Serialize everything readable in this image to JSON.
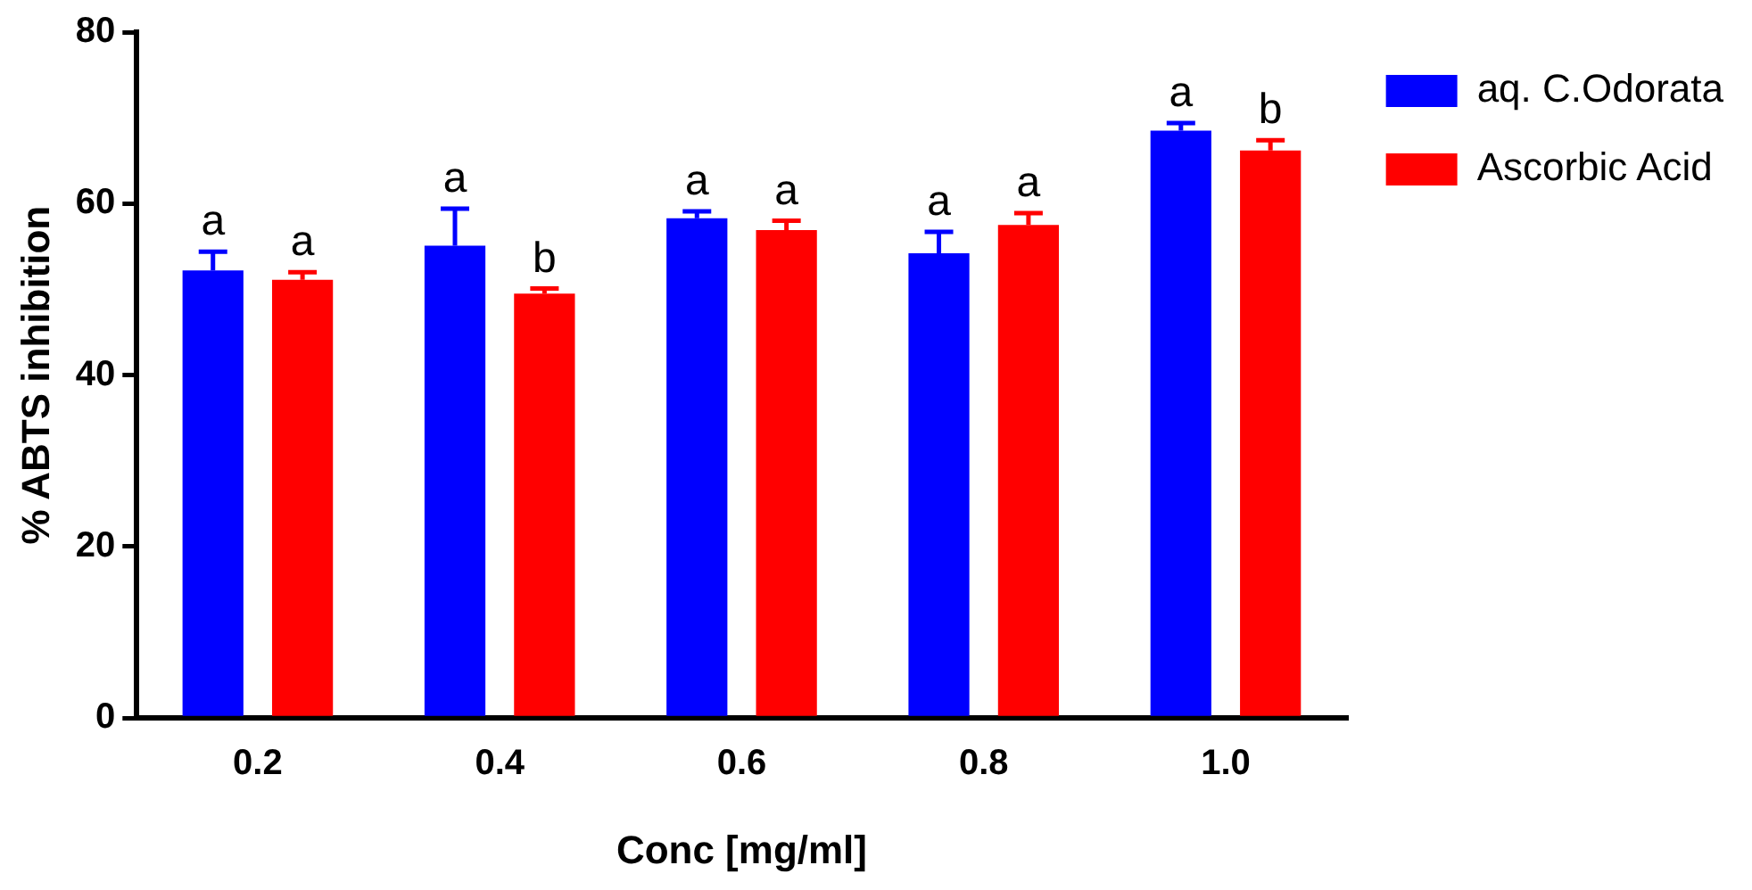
{
  "chart_data": {
    "type": "bar",
    "xlabel": "Conc [mg/ml]",
    "ylabel": "% ABTS inhibition",
    "categories": [
      "0.2",
      "0.4",
      "0.6",
      "0.8",
      "1.0"
    ],
    "series": [
      {
        "name": "aq. C.Odorata",
        "color": "#0000ff",
        "values": [
          52.2,
          55.1,
          58.3,
          54.2,
          68.5
        ],
        "errors": [
          [
            52.2,
            54.4
          ],
          [
            55.1,
            59.4
          ],
          [
            58.3,
            59.1
          ],
          [
            54.2,
            56.7
          ],
          [
            68.5,
            69.4
          ]
        ],
        "value_labels": [
          "a",
          "a",
          "a",
          "a",
          "a"
        ]
      },
      {
        "name": "Ascorbic Acid",
        "color": "#ff0000",
        "values": [
          51.1,
          49.5,
          56.9,
          57.5,
          66.2
        ],
        "errors": [
          [
            51.1,
            52.0
          ],
          [
            49.5,
            50.1
          ],
          [
            56.9,
            58.0
          ],
          [
            57.5,
            58.9
          ],
          [
            66.2,
            67.4
          ]
        ],
        "value_labels": [
          "a",
          "b",
          "a",
          "a",
          "b"
        ]
      }
    ],
    "ylim": [
      0,
      80
    ],
    "yticks": [
      0,
      20,
      40,
      60,
      80
    ],
    "grid": false,
    "legend": "top right"
  }
}
